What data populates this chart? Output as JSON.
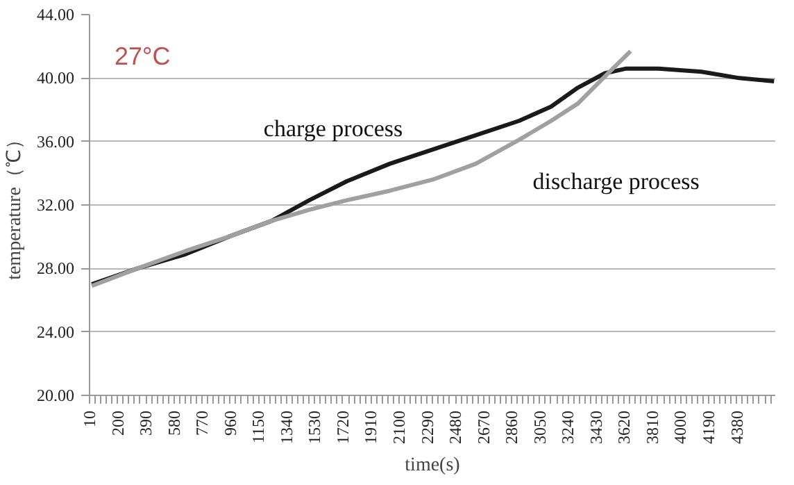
{
  "chart_data": {
    "type": "line",
    "xlabel": "time(s)",
    "ylabel": "temperature（℃）",
    "xlim": [
      10,
      4640
    ],
    "ylim": [
      20,
      44
    ],
    "xticks": [
      10,
      200,
      390,
      580,
      770,
      960,
      1150,
      1340,
      1530,
      1720,
      1910,
      2100,
      2290,
      2480,
      2670,
      2860,
      3050,
      3240,
      3430,
      3620,
      3810,
      4000,
      4190,
      4380
    ],
    "yticks": [
      {
        "value": 20,
        "label": "20.00"
      },
      {
        "value": 24,
        "label": "24.00"
      },
      {
        "value": 28,
        "label": "28.00"
      },
      {
        "value": 32,
        "label": "32.00"
      },
      {
        "value": 36,
        "label": "36.00"
      },
      {
        "value": 40,
        "label": "40.00"
      },
      {
        "value": 44,
        "label": "44.00"
      }
    ],
    "grid": "y",
    "marker": "none",
    "line_style": "solid",
    "annotations": [
      "27°C"
    ],
    "series": [
      {
        "name": "charge process",
        "color": "#1a1a1a",
        "x": [
          25,
          333,
          659,
          950,
          1240,
          1494,
          1748,
          2038,
          2328,
          2618,
          2909,
          3126,
          3308,
          3489,
          3634,
          3852,
          4142,
          4396,
          4632
        ],
        "values": [
          27.0,
          28.0,
          28.9,
          30.0,
          31.0,
          32.3,
          33.5,
          34.6,
          35.5,
          36.4,
          37.3,
          38.2,
          39.4,
          40.3,
          40.6,
          40.6,
          40.4,
          40.0,
          39.8
        ]
      },
      {
        "name": "discharge process",
        "color": "#a0a0a0",
        "x": [
          25,
          333,
          659,
          950,
          1240,
          1494,
          1748,
          2038,
          2328,
          2618,
          2909,
          3126,
          3308,
          3489,
          3663
        ],
        "values": [
          26.9,
          28.0,
          29.1,
          30.0,
          31.0,
          31.7,
          32.3,
          32.9,
          33.6,
          34.6,
          36.1,
          37.3,
          38.4,
          40.1,
          41.7
        ]
      }
    ]
  }
}
